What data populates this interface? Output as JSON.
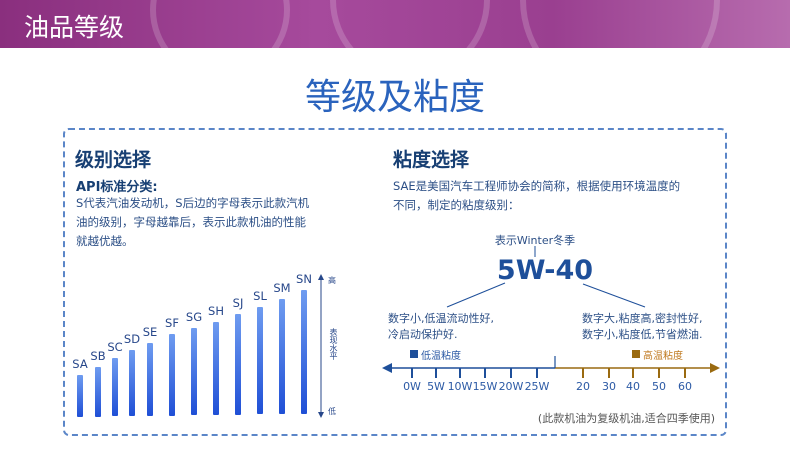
{
  "banner": {
    "title": "油品等级"
  },
  "main_title": "等级及粘度",
  "grade": {
    "heading": "级别选择",
    "subheading": "API标准分类:",
    "lines": [
      "S代表汽油发动机，S后边的字母表示此款汽机",
      "油的级别，字母越靠后，表示此款机油的性能",
      "就越优越。"
    ],
    "grades": [
      "SA",
      "SB",
      "SC",
      "SD",
      "SE",
      "SF",
      "SG",
      "SH",
      "SJ",
      "SL",
      "SM",
      "SN"
    ],
    "axis_high": "高",
    "axis_label": "表现水平",
    "axis_low": "低"
  },
  "viscosity": {
    "heading": "粘度选择",
    "lines": [
      "SAE是美国汽车工程师协会的简称，根据使用环境温度的",
      "不同，制定的粘度级别："
    ],
    "winter_note": "表示Winter冬季",
    "example": "5W-40",
    "left_note": [
      "数字小,低温流动性好,",
      "冷启动保护好."
    ],
    "right_note": [
      "数字大,粘度高,密封性好,",
      "数字小,粘度低,节省燃油."
    ],
    "low_temp_legend": "低温粘度",
    "high_temp_legend": "高温粘度",
    "low_ticks": [
      "0W",
      "5W",
      "10W",
      "15W",
      "20W",
      "25W"
    ],
    "high_ticks": [
      "20",
      "30",
      "40",
      "50",
      "60"
    ],
    "footnote": "(此款机油为复级机油,适合四季使用)",
    "colors": {
      "low": "#1e4f9a",
      "high": "#9a6a10"
    }
  }
}
